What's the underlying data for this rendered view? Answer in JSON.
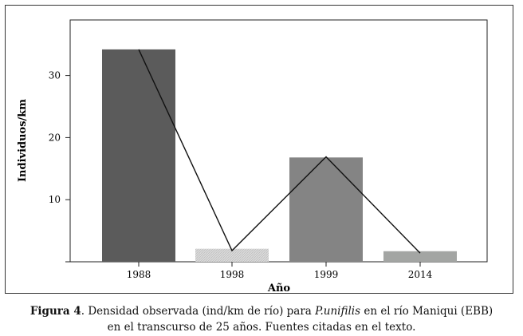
{
  "chart_data": {
    "type": "bar",
    "categories": [
      "1988",
      "1998",
      "1999",
      "2014"
    ],
    "values": [
      34.2,
      2.1,
      16.8,
      1.7
    ],
    "line_values": [
      34.2,
      1.8,
      16.9,
      1.4
    ],
    "xlabel": "Año",
    "ylabel": "Individuos/km",
    "yticks": [
      10,
      20,
      30
    ],
    "ylim": [
      0,
      38
    ],
    "grid": false,
    "bar_colors": [
      "#5b5b5b",
      "#d2d2d2",
      "#848484",
      "#a3a5a3"
    ]
  },
  "caption": {
    "label": "Figura 4",
    "text_before": ". Densidad observada (ind/km de río) para ",
    "species": "P.unifilis",
    "text_after": " en el río Maniqui (EBB)",
    "line2": "en el transcurso de 25 años. Fuentes citadas en el texto."
  }
}
